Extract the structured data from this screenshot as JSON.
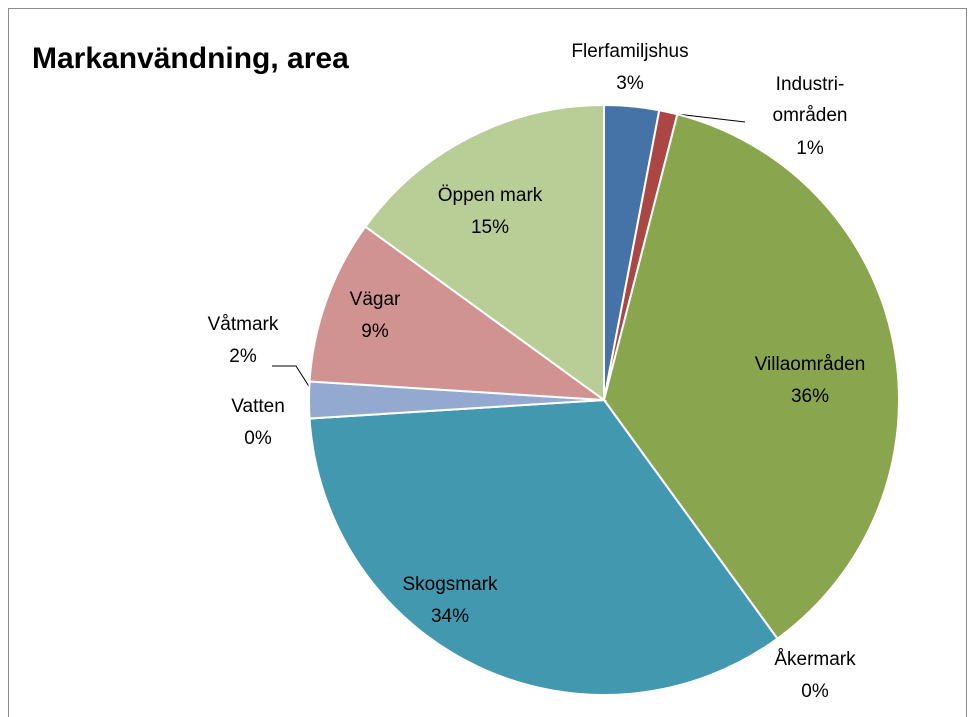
{
  "chart_data": {
    "type": "pie",
    "title": "Markanvändning, area",
    "categories": [
      "Flerfamiljshus",
      "Industri-områden",
      "Villaområden",
      "Åkermark",
      "Skogsmark",
      "Vatten",
      "Våtmark",
      "Vägar",
      "Öppen mark"
    ],
    "values": [
      3,
      1,
      36,
      0,
      34,
      0,
      2,
      9,
      15
    ],
    "value_labels": [
      "3%",
      "1%",
      "36%",
      "0%",
      "34%",
      "0%",
      "2%",
      "9%",
      "15%"
    ],
    "colors": [
      "#4572a7",
      "#aa4643",
      "#89a54e",
      "#71588f",
      "#4198af",
      "#db843d",
      "#93a9cf",
      "#d19392",
      "#b9cd96"
    ]
  }
}
